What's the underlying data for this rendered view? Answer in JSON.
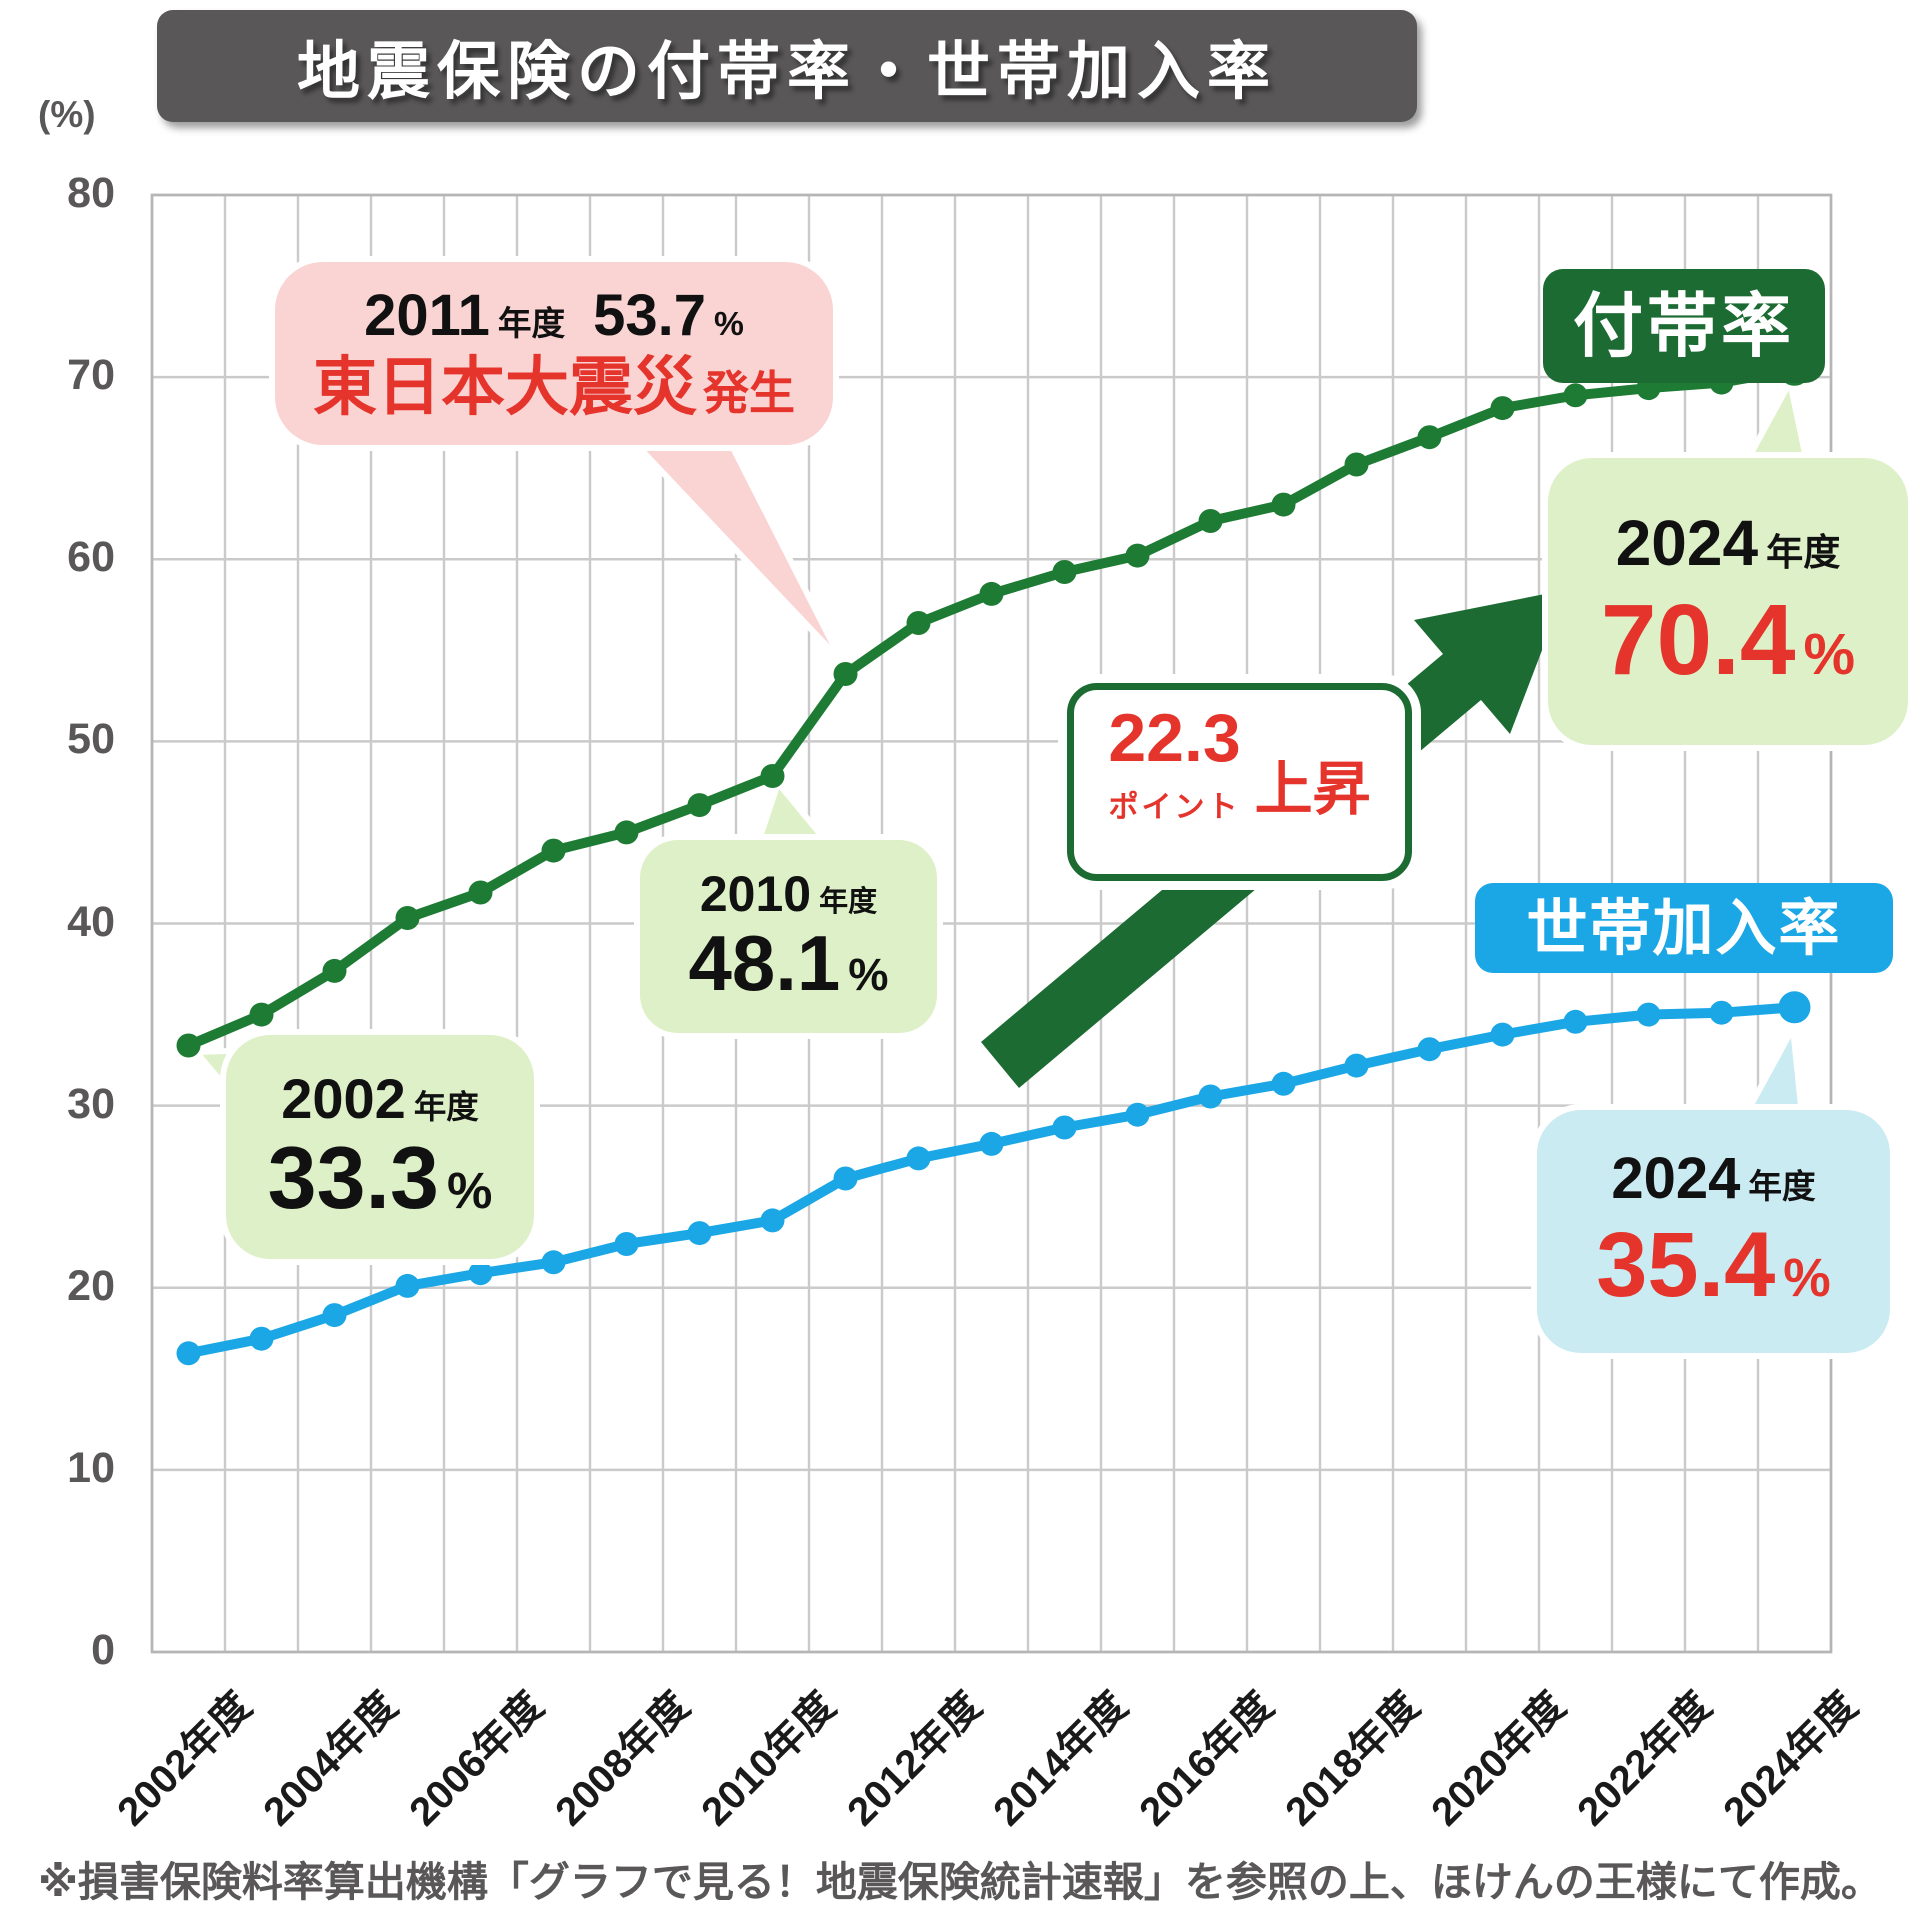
{
  "title": "地震保険の付帯率・世帯加入率",
  "y_axis": {
    "unit": "(%)",
    "ticks": [
      80,
      70,
      60,
      50,
      40,
      30,
      20,
      10,
      0
    ]
  },
  "x_labels": [
    "2002年度",
    "2004年度",
    "2006年度",
    "2008年度",
    "2010年度",
    "2012年度",
    "2014年度",
    "2016年度",
    "2018年度",
    "2020年度",
    "2022年度",
    "2024年度"
  ],
  "chart_data": {
    "type": "line",
    "x": [
      2002,
      2003,
      2004,
      2005,
      2006,
      2007,
      2008,
      2009,
      2010,
      2011,
      2012,
      2013,
      2014,
      2015,
      2016,
      2017,
      2018,
      2019,
      2020,
      2021,
      2022,
      2023,
      2024
    ],
    "ylim": [
      0,
      80
    ],
    "grid": true,
    "legend_position": "inline-tags",
    "series": [
      {
        "name": "付帯率",
        "color": "#1e7b34",
        "values": [
          33.3,
          35.0,
          37.4,
          40.3,
          41.7,
          44.0,
          45.0,
          46.5,
          48.1,
          53.7,
          56.5,
          58.1,
          59.3,
          60.2,
          62.1,
          63.0,
          65.2,
          66.7,
          68.3,
          69.0,
          69.4,
          69.7,
          70.4
        ]
      },
      {
        "name": "世帯加入率",
        "color": "#1ba7e6",
        "values": [
          16.4,
          17.2,
          18.5,
          20.1,
          20.8,
          21.4,
          22.4,
          23.0,
          23.7,
          26.0,
          27.1,
          27.9,
          28.8,
          29.5,
          30.5,
          31.2,
          32.2,
          33.1,
          33.9,
          34.6,
          35.0,
          35.1,
          35.4
        ]
      }
    ]
  },
  "legend": {
    "futai": "付帯率",
    "setai": "世帯加入率"
  },
  "annotations": {
    "quake2011": {
      "year": "2011",
      "era": "年度",
      "value": "53.7",
      "unit": "%",
      "event": "東日本大震災",
      "event_suffix": "発生"
    },
    "point2002": {
      "year": "2002",
      "era": "年度",
      "value": "33.3",
      "unit": "%"
    },
    "point2010": {
      "year": "2010",
      "era": "年度",
      "value": "48.1",
      "unit": "%"
    },
    "futai2024": {
      "year": "2024",
      "era": "年度",
      "value": "70.4",
      "unit": "%"
    },
    "setai2024": {
      "year": "2024",
      "era": "年度",
      "value": "35.4",
      "unit": "%"
    },
    "rise": {
      "value": "22.3",
      "unit": "ポイント",
      "label": "上昇"
    }
  },
  "footer": "※損害保険料率算出機構「グラフで見る！地震保険統計速報」を参照の上、ほけんの王様にて作成。",
  "colors": {
    "green_line": "#1e7b34",
    "green_dark": "#1c6b33",
    "blue": "#1ba7e6",
    "bubble_green": "#ddf0c7",
    "bubble_pink": "#fad3d3",
    "bubble_blue": "#caebf2",
    "red": "#e4342c",
    "title_bg": "#595757",
    "text_gray": "#595757",
    "grid": "#cacaca",
    "axis": "#b5b5b5"
  }
}
